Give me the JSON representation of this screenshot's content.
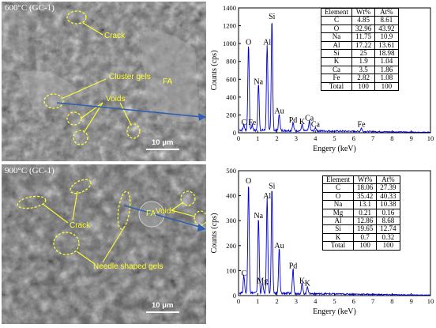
{
  "panels": [
    {
      "sem_title": "600°C (GC-1)",
      "labels": {
        "crack": "Crack",
        "cluster_gels": "Cluster gels",
        "voids": "Voids",
        "fa": "FA"
      },
      "scale": "10 μm"
    },
    {
      "sem_title": "900°C (GC-1)",
      "labels": {
        "crack": "Crack",
        "voids": "Voids",
        "needle_gels": "Needle shaped gels",
        "fa": "FA"
      },
      "scale": "10 μm"
    }
  ],
  "composition_tables": [
    {
      "headers": [
        "Element",
        "Wt%",
        "At%"
      ],
      "rows": [
        [
          "C",
          "4.85",
          "8.61"
        ],
        [
          "O",
          "32.96",
          "43.92"
        ],
        [
          "Na",
          "11.75",
          "10.9"
        ],
        [
          "Al",
          "17.22",
          "13.61"
        ],
        [
          "Si",
          "25",
          "18.98"
        ],
        [
          "K",
          "1.9",
          "1.04"
        ],
        [
          "Ca",
          "3.5",
          "1.86"
        ],
        [
          "Fe",
          "2.82",
          "1.08"
        ],
        [
          "Total",
          "100",
          "100"
        ]
      ]
    },
    {
      "headers": [
        "Element",
        "Wt%",
        "At%"
      ],
      "rows": [
        [
          "C",
          "18.06",
          "27.39"
        ],
        [
          "O",
          "35.42",
          "40.33"
        ],
        [
          "Na",
          "13.1",
          "10.38"
        ],
        [
          "Mg",
          "0.21",
          "0.16"
        ],
        [
          "Al",
          "12.86",
          "8.68"
        ],
        [
          "Si",
          "19.65",
          "12.74"
        ],
        [
          "K",
          "0.7",
          "0.32"
        ],
        [
          "Total",
          "100",
          "100"
        ]
      ]
    }
  ],
  "chart_data": [
    {
      "type": "line",
      "xlabel": "Engery (keV)",
      "ylabel": "Counts (cps)",
      "xlim": [
        0,
        10
      ],
      "ylim": [
        0,
        1400
      ],
      "xticks": [
        0,
        1,
        2,
        3,
        4,
        5,
        6,
        7,
        8,
        9,
        10
      ],
      "yticks": [
        0,
        200,
        400,
        600,
        800,
        1000,
        1200,
        1400
      ],
      "line_color": "#0000cc",
      "peaks": [
        {
          "label": "C",
          "x": 0.28,
          "y": 60
        },
        {
          "label": "O",
          "x": 0.52,
          "y": 960
        },
        {
          "label": "Fe",
          "x": 0.71,
          "y": 60
        },
        {
          "label": "Na",
          "x": 1.04,
          "y": 520
        },
        {
          "label": "Al",
          "x": 1.49,
          "y": 960
        },
        {
          "label": "Si",
          "x": 1.74,
          "y": 1250
        },
        {
          "label": "Au",
          "x": 2.12,
          "y": 190
        },
        {
          "label": "Pd",
          "x": 2.84,
          "y": 90
        },
        {
          "label": "K",
          "x": 3.31,
          "y": 70
        },
        {
          "label": "Ca",
          "x": 3.69,
          "y": 110
        },
        {
          "label": "Ca",
          "x": 4.01,
          "y": 40
        },
        {
          "label": "Fe",
          "x": 6.4,
          "y": 40
        }
      ]
    },
    {
      "type": "line",
      "xlabel": "Engery (keV)",
      "ylabel": "Counts (cps)",
      "xlim": [
        0,
        10
      ],
      "ylim": [
        0,
        500
      ],
      "xticks": [
        0,
        1,
        2,
        3,
        4,
        5,
        6,
        7,
        8,
        9,
        10
      ],
      "yticks": [
        0,
        100,
        200,
        300,
        400,
        500
      ],
      "line_color": "#0000cc",
      "peaks": [
        {
          "label": "C",
          "x": 0.28,
          "y": 70
        },
        {
          "label": "O",
          "x": 0.52,
          "y": 440
        },
        {
          "label": "Na",
          "x": 1.04,
          "y": 300
        },
        {
          "label": "Mg",
          "x": 1.25,
          "y": 40
        },
        {
          "label": "Al",
          "x": 1.49,
          "y": 380
        },
        {
          "label": "Si",
          "x": 1.74,
          "y": 420
        },
        {
          "label": "Au",
          "x": 2.12,
          "y": 180
        },
        {
          "label": "Pd",
          "x": 2.84,
          "y": 100
        },
        {
          "label": "K",
          "x": 3.31,
          "y": 40
        },
        {
          "label": "K",
          "x": 3.59,
          "y": 30
        }
      ]
    }
  ]
}
